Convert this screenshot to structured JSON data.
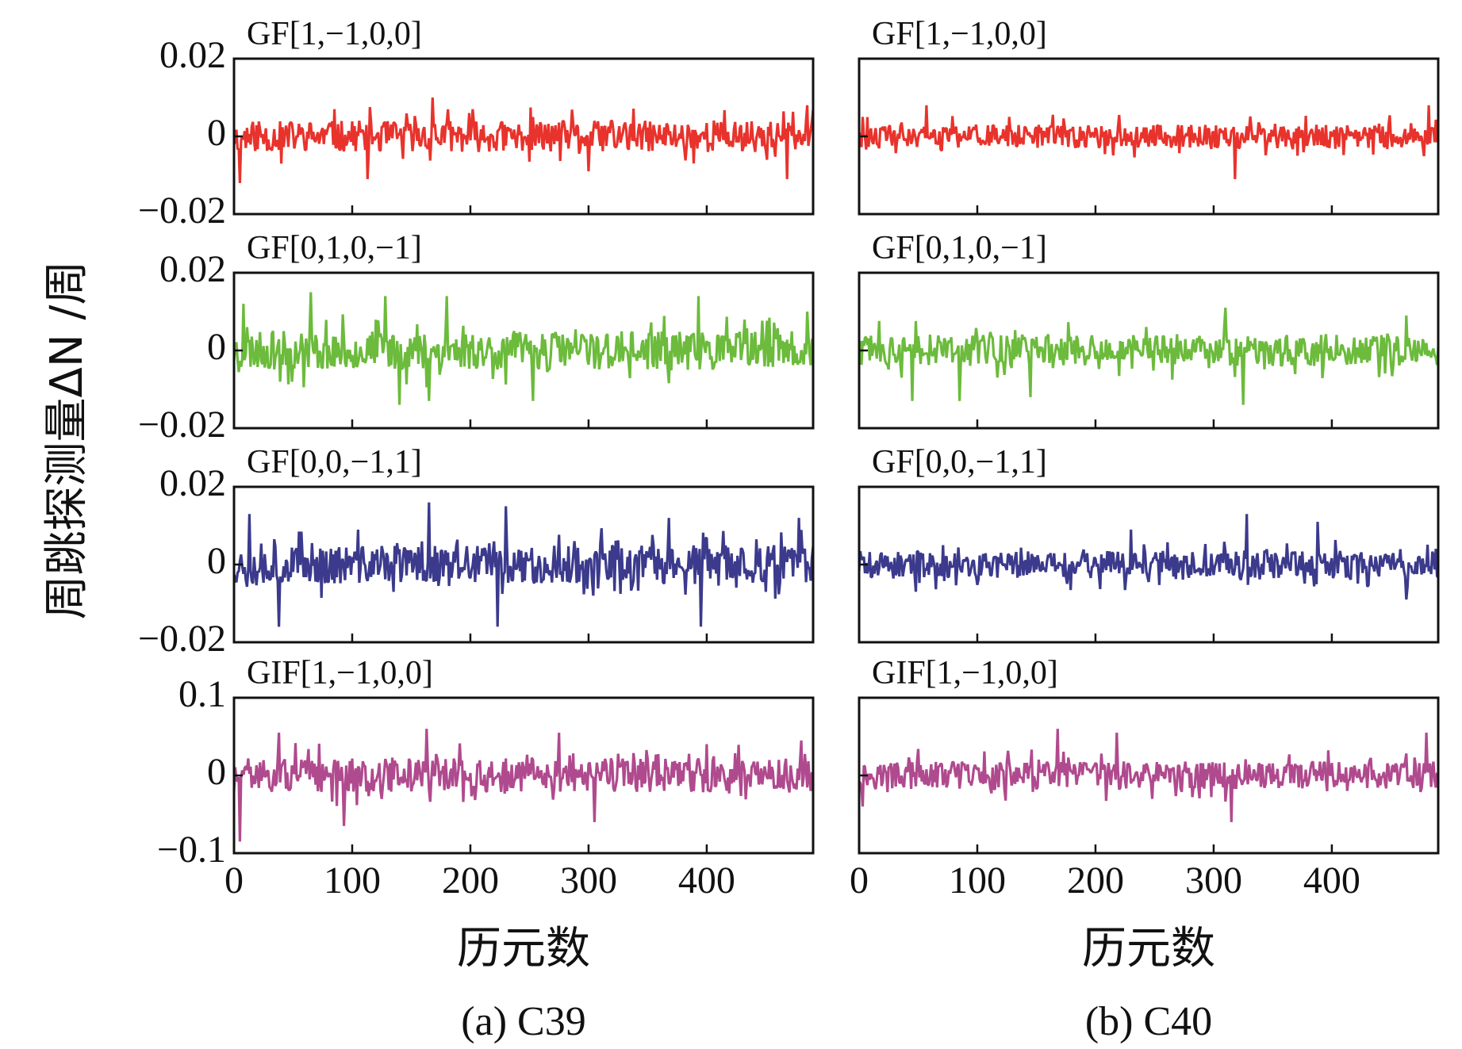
{
  "figure": {
    "ylabel": "周跳探测量ΔN /周",
    "xlabel": "历元数"
  },
  "chart_data": [
    {
      "type": "line",
      "caption": "(a) C39",
      "xlabel": "历元数",
      "xlim": [
        0,
        490
      ],
      "xticks": [
        0,
        100,
        200,
        300,
        400
      ],
      "xtick_labels": [
        "0",
        "100",
        "200",
        "300",
        "400"
      ],
      "panels": [
        {
          "label": "GF[1,−1,0,0]",
          "color": "#e8332c",
          "ylim": [
            -0.02,
            0.02
          ],
          "ytick_labels": [
            "0.02",
            "0",
            "−0.02"
          ],
          "noise_amplitude": 0.004,
          "seed": 11,
          "peaks": [
            [
              5,
              -0.012
            ],
            [
              40,
              -0.007
            ],
            [
              85,
              0.007
            ],
            [
              168,
              0.01
            ],
            [
              113,
              -0.011
            ],
            [
              300,
              -0.009
            ],
            [
              468,
              -0.011
            ],
            [
              485,
              0.008
            ]
          ]
        },
        {
          "label": "GF[0,1,0,−1]",
          "color": "#6cbb3c",
          "ylim": [
            -0.02,
            0.02
          ],
          "ytick_labels": [
            "0.02",
            "0",
            "−0.02"
          ],
          "noise_amplitude": 0.005,
          "seed": 23,
          "peaks": [
            [
              8,
              0.012
            ],
            [
              65,
              0.015
            ],
            [
              128,
              0.014
            ],
            [
              180,
              0.014
            ],
            [
              140,
              -0.014
            ],
            [
              165,
              -0.013
            ],
            [
              253,
              -0.013
            ],
            [
              393,
              0.014
            ],
            [
              485,
              0.01
            ]
          ]
        },
        {
          "label": "GF[0,0,−1,1]",
          "color": "#3b3a8c",
          "ylim": [
            -0.02,
            0.02
          ],
          "ytick_labels": [
            "0.02",
            "0",
            "−0.02"
          ],
          "noise_amplitude": 0.005,
          "seed": 37,
          "peaks": [
            [
              13,
              0.013
            ],
            [
              38,
              -0.016
            ],
            [
              165,
              0.016
            ],
            [
              230,
              0.015
            ],
            [
              223,
              -0.016
            ],
            [
              368,
              0.012
            ],
            [
              395,
              -0.016
            ],
            [
              478,
              0.012
            ]
          ]
        },
        {
          "label": "GIF[1,−1,0,0]",
          "color": "#b04a8e",
          "ylim": [
            -0.1,
            0.1
          ],
          "ytick_labels": [
            "0.1",
            "0",
            "−0.1"
          ],
          "noise_amplitude": 0.022,
          "seed": 51,
          "peaks": [
            [
              5,
              -0.085
            ],
            [
              38,
              0.055
            ],
            [
              93,
              -0.065
            ],
            [
              163,
              0.06
            ],
            [
              275,
              0.055
            ],
            [
              305,
              -0.06
            ],
            [
              480,
              0.045
            ]
          ]
        }
      ]
    },
    {
      "type": "line",
      "caption": "(b) C40",
      "xlabel": "历元数",
      "xlim": [
        0,
        490
      ],
      "xticks": [
        0,
        100,
        200,
        300,
        400
      ],
      "xtick_labels": [
        "0",
        "100",
        "200",
        "300",
        "400"
      ],
      "panels": [
        {
          "label": "GF[1,−1,0,0]",
          "color": "#e8332c",
          "ylim": [
            -0.02,
            0.02
          ],
          "ytick_labels": [],
          "noise_amplitude": 0.003,
          "seed": 61,
          "peaks": [
            [
              3,
              0.005
            ],
            [
              57,
              0.008
            ],
            [
              318,
              -0.011
            ],
            [
              482,
              0.008
            ]
          ]
        },
        {
          "label": "GF[0,1,0,−1]",
          "color": "#6cbb3c",
          "ylim": [
            -0.02,
            0.02
          ],
          "ytick_labels": [],
          "noise_amplitude": 0.004,
          "seed": 73,
          "peaks": [
            [
              45,
              -0.013
            ],
            [
              85,
              -0.013
            ],
            [
              145,
              -0.012
            ],
            [
              325,
              -0.014
            ],
            [
              310,
              0.011
            ],
            [
              463,
              0.009
            ]
          ]
        },
        {
          "label": "GF[0,0,−1,1]",
          "color": "#3b3a8c",
          "ylim": [
            -0.02,
            0.02
          ],
          "ytick_labels": [],
          "noise_amplitude": 0.0035,
          "seed": 89,
          "peaks": [
            [
              230,
              0.009
            ],
            [
              328,
              0.013
            ],
            [
              388,
              0.011
            ],
            [
              463,
              -0.009
            ],
            [
              48,
              -0.007
            ]
          ]
        },
        {
          "label": "GIF[1,−1,0,0]",
          "color": "#b04a8e",
          "ylim": [
            -0.1,
            0.1
          ],
          "ytick_labels": [],
          "noise_amplitude": 0.018,
          "seed": 97,
          "peaks": [
            [
              3,
              -0.04
            ],
            [
              168,
              0.06
            ],
            [
              218,
              0.055
            ],
            [
              315,
              -0.06
            ],
            [
              480,
              0.055
            ]
          ]
        }
      ]
    }
  ]
}
